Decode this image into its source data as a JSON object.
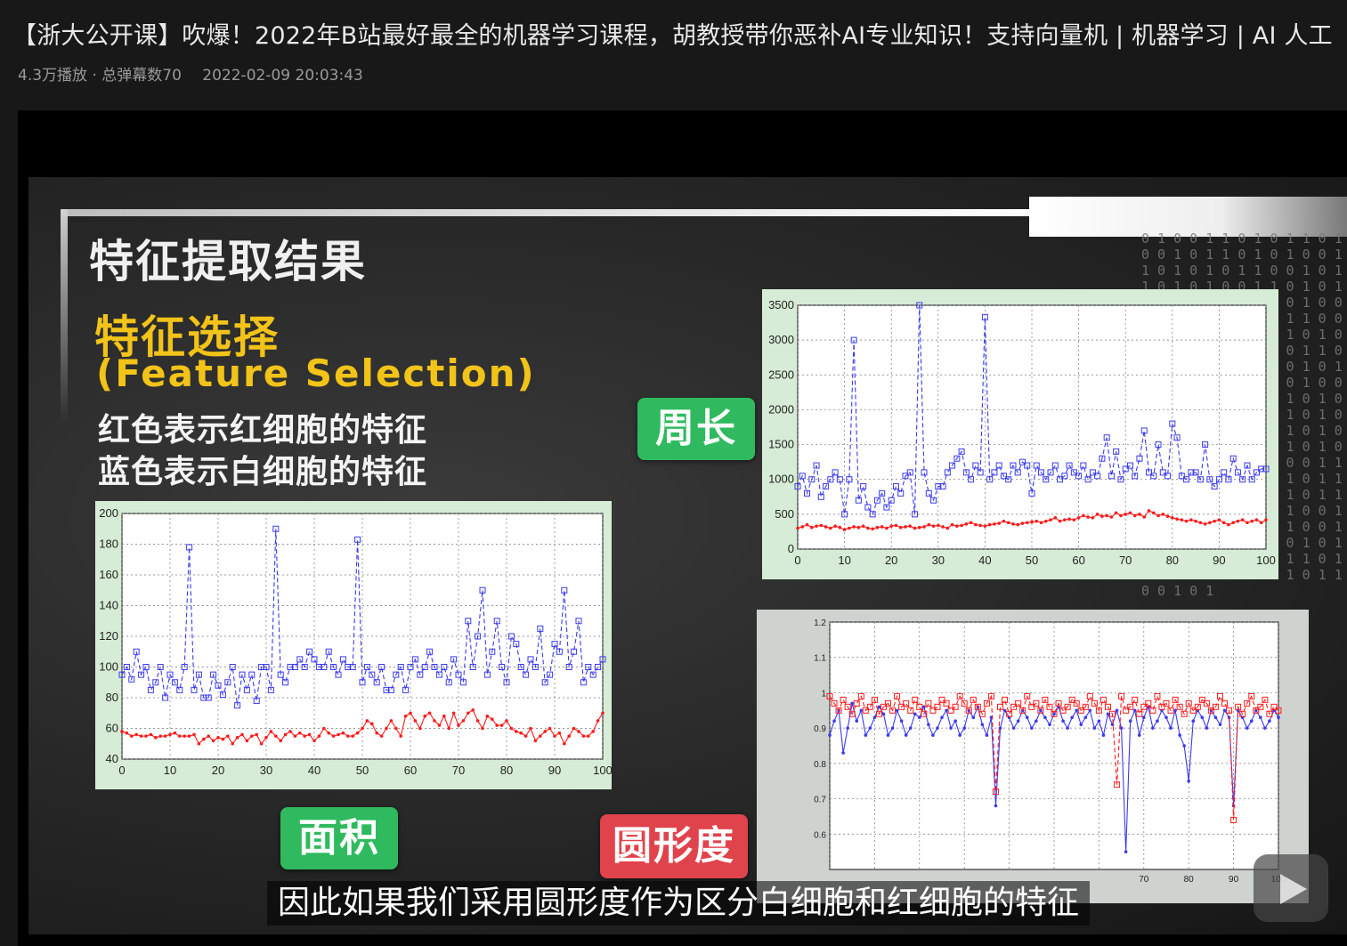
{
  "video": {
    "title": "【浙大公开课】吹爆！2022年B站最好最全的机器学习课程，胡教授带你恶补AI专业知识！支持向量机 | 机器学习 | AI 人工",
    "stats": "4.3万播放 · 总弹幕数70",
    "date": "2022-02-09 20:03:43"
  },
  "slide": {
    "heading": "特征提取结果",
    "feature_cn": "特征选择",
    "feature_en": "(Feature  Selection)",
    "red_note": "红色表示红细胞的特征",
    "blue_note": "蓝色表示白细胞的特征",
    "badge_perimeter": "周长",
    "badge_area": "面积",
    "badge_circularity": "圆形度",
    "matrix_text": "0 1 0 0 1 1 0 1 0 1 1 0 1 0 0 1 0 1 1 0 1 0 1 0 0 1 1 0 1 0 1 0 1 1 0 0 1 0 1 1 0 1 0 1 0 0 1 1 0 1 0 1 1 0 0 1 0 1 0 1 1 0 1 0 0 1 0 1 1 0 1 0 1 0 1 1 0 0 1 0 1 1 0 1 0 0 1 1 0 1 0 1 0 1 1 0 1 0 0 1 0 1 1 0 1 0 1 0 0 1 1 0 1 0 1 0 1 1 0 0 1 0 1 1 0 1 0 1 0 0 1 1 0 1 0 1 1 0 0 1 0 1 0 1 1 0 1 0 0 1 0 1 1 0 1 0 1 0 1 1 0 0 1 0 1 1 0 1 0 0 1 1 0 1 0 1 0 1 1 0 1 0 0 1 0 1 1 0 1 0 1 0 0 1 1 0 1 0 1 0 1 1 0 0 1 0 1 1 0 1 0 1 0 0 1 1 0 1 0 1 1 0 0 1 0 1 0 1 1 0 1 0 0 1 0 1 1 0 1 0 1 0 1 1 0 0 1 0 1 1 0 1 0 0 1 1 0 1 0 1 0 1 1 0 1 0 0 1 0 1 1 0 1 0 1 0 0 1 1 0 1 0 1 0 1 1 0 0 1 0 1"
  },
  "subtitle": "因此如果我们采用圆形度作为区分白细胞和红细胞的特征",
  "colors": {
    "red_series": "#ff1a1a",
    "blue_series": "#3a3af0",
    "badge_green": "#2fba5f",
    "badge_red": "#e0434c"
  },
  "chart_data": [
    {
      "id": "perimeter",
      "type": "line",
      "title": "周长",
      "xlim": [
        0,
        100
      ],
      "ylim": [
        0,
        3500
      ],
      "xticks": [
        0,
        10,
        20,
        30,
        40,
        50,
        60,
        70,
        80,
        90,
        100
      ],
      "yticks": [
        0,
        500,
        1000,
        1500,
        2000,
        2500,
        3000,
        3500
      ],
      "series": [
        {
          "name": "白细胞",
          "color": "#3a3af0",
          "marker": "square",
          "values": [
            900,
            1050,
            800,
            1000,
            1200,
            750,
            900,
            1000,
            1100,
            1000,
            500,
            1000,
            3000,
            700,
            900,
            600,
            500,
            700,
            800,
            600,
            700,
            900,
            800,
            1050,
            1100,
            500,
            3500,
            1100,
            800,
            700,
            900,
            900,
            1100,
            1200,
            1300,
            1400,
            1100,
            1000,
            1200,
            1100,
            3330,
            1000,
            1100,
            1200,
            1050,
            1000,
            1200,
            1100,
            1250,
            1200,
            800,
            1200,
            1100,
            1000,
            1100,
            1200,
            1000,
            1050,
            1200,
            1100,
            1050,
            1200,
            1000,
            1100,
            1050,
            1300,
            1600,
            1050,
            1400,
            1000,
            1150,
            1200,
            1050,
            1300,
            1700,
            1100,
            1050,
            1500,
            1100,
            1050,
            1800,
            1600,
            1050,
            1000,
            1100,
            1100,
            1000,
            1500,
            1000,
            900,
            1000,
            1100,
            1000,
            1300,
            1100,
            1000,
            1200,
            1000,
            1100,
            1150,
            1150
          ],
          "peaks": []
        },
        {
          "name": "红细胞",
          "color": "#ff1a1a",
          "marker": "star",
          "values": [
            300,
            320,
            350,
            310,
            330,
            340,
            320,
            300,
            330,
            310,
            280,
            300,
            320,
            310,
            330,
            300,
            290,
            310,
            320,
            300,
            330,
            340,
            310,
            320,
            330,
            300,
            310,
            320,
            350,
            330,
            340,
            320,
            300,
            350,
            330,
            340,
            360,
            380,
            350,
            340,
            330,
            350,
            360,
            370,
            400,
            380,
            360,
            350,
            370,
            380,
            390,
            400,
            380,
            400,
            420,
            450,
            400,
            420,
            430,
            420,
            450,
            480,
            460,
            450,
            500,
            470,
            480,
            460,
            520,
            480,
            500,
            520,
            480,
            500,
            460,
            550,
            520,
            480,
            500,
            470,
            450,
            430,
            420,
            400,
            420,
            400,
            380,
            360,
            380,
            400,
            420,
            380,
            350,
            380,
            400,
            420,
            380,
            400,
            420,
            380,
            420
          ]
        }
      ]
    },
    {
      "id": "area",
      "type": "line",
      "title": "面积",
      "xlim": [
        0,
        100
      ],
      "ylim": [
        40,
        200
      ],
      "xticks": [
        0,
        10,
        20,
        30,
        40,
        50,
        60,
        70,
        80,
        90,
        100
      ],
      "yticks": [
        40,
        60,
        80,
        100,
        120,
        140,
        160,
        180,
        200
      ],
      "series": [
        {
          "name": "白细胞",
          "color": "#3a3af0",
          "marker": "square",
          "values": [
            95,
            100,
            92,
            110,
            95,
            100,
            85,
            90,
            100,
            80,
            95,
            90,
            85,
            100,
            178,
            85,
            95,
            80,
            80,
            95,
            88,
            82,
            90,
            100,
            75,
            95,
            85,
            95,
            78,
            100,
            100,
            85,
            190,
            95,
            90,
            100,
            100,
            105,
            100,
            110,
            105,
            100,
            100,
            110,
            100,
            95,
            105,
            100,
            100,
            183,
            90,
            100,
            95,
            90,
            100,
            85,
            85,
            95,
            100,
            85,
            100,
            105,
            95,
            100,
            110,
            100,
            95,
            100,
            90,
            105,
            95,
            90,
            130,
            100,
            120,
            150,
            95,
            110,
            130,
            100,
            90,
            120,
            115,
            100,
            95,
            105,
            100,
            125,
            90,
            95,
            115,
            110,
            150,
            100,
            110,
            130,
            90,
            100,
            95,
            100,
            105
          ],
          "peaks": []
        },
        {
          "name": "红细胞",
          "color": "#ff1a1a",
          "marker": "star",
          "values": [
            58,
            57,
            55,
            56,
            55,
            55,
            56,
            54,
            55,
            55,
            56,
            57,
            55,
            55,
            55,
            56,
            50,
            53,
            55,
            52,
            54,
            53,
            55,
            50,
            54,
            56,
            52,
            55,
            56,
            50,
            54,
            58,
            55,
            52,
            56,
            58,
            55,
            57,
            55,
            56,
            52,
            55,
            60,
            57,
            55,
            56,
            57,
            55,
            55,
            57,
            60,
            65,
            63,
            57,
            55,
            60,
            65,
            60,
            55,
            68,
            70,
            65,
            60,
            68,
            70,
            65,
            62,
            68,
            60,
            70,
            62,
            65,
            70,
            72,
            65,
            60,
            68,
            66,
            62,
            62,
            65,
            60,
            58,
            57,
            55,
            60,
            52,
            55,
            58,
            60,
            55,
            57,
            50,
            55,
            60,
            58,
            55,
            55,
            58,
            65,
            70
          ]
        }
      ]
    },
    {
      "id": "circularity",
      "type": "line",
      "title": "圆形度",
      "xlim": [
        0,
        100
      ],
      "ylim": [
        0.5,
        1.2
      ],
      "xticks": [
        70,
        80,
        90,
        100
      ],
      "yticks": [
        0.6,
        0.7,
        0.8,
        0.9,
        1.0,
        1.1,
        1.2
      ],
      "series": [
        {
          "name": "白细胞",
          "color": "#3a3af0",
          "marker": "star",
          "values": [
            0.88,
            0.92,
            0.95,
            0.83,
            0.9,
            0.97,
            0.92,
            0.95,
            0.88,
            0.9,
            0.93,
            0.96,
            0.94,
            0.88,
            0.9,
            0.95,
            0.92,
            0.88,
            0.9,
            0.94,
            0.93,
            0.96,
            0.91,
            0.88,
            0.9,
            0.93,
            0.95,
            0.9,
            0.92,
            0.88,
            0.9,
            0.95,
            0.93,
            0.96,
            0.91,
            0.88,
            0.93,
            0.68,
            0.9,
            0.95,
            0.93,
            0.9,
            0.92,
            0.95,
            0.93,
            0.9,
            0.92,
            0.95,
            0.93,
            0.91,
            0.94,
            0.96,
            0.92,
            0.9,
            0.93,
            0.95,
            0.91,
            0.93,
            0.95,
            0.9,
            0.92,
            0.88,
            0.94,
            0.91,
            0.95,
            0.9,
            0.55,
            0.92,
            0.95,
            0.88,
            0.93,
            0.96,
            0.9,
            0.92,
            0.95,
            0.93,
            0.9,
            0.95,
            0.88,
            0.85,
            0.75,
            0.92,
            0.95,
            0.93,
            0.9,
            0.95,
            0.93,
            0.91,
            0.95,
            0.93,
            0.68,
            0.95,
            0.93,
            0.9,
            0.92,
            0.95,
            0.93,
            0.9,
            0.92,
            0.95,
            0.93
          ]
        },
        {
          "name": "红细胞",
          "color": "#ff1a1a",
          "marker": "square",
          "values": [
            0.99,
            0.97,
            0.95,
            0.98,
            0.96,
            0.94,
            0.97,
            0.99,
            0.95,
            0.96,
            0.98,
            0.94,
            0.96,
            0.97,
            0.95,
            0.99,
            0.96,
            0.97,
            0.95,
            0.98,
            0.96,
            0.94,
            0.97,
            0.95,
            0.96,
            0.98,
            0.97,
            0.95,
            0.96,
            0.99,
            0.97,
            0.95,
            0.98,
            0.96,
            0.94,
            0.97,
            0.99,
            0.72,
            0.96,
            0.98,
            0.94,
            0.96,
            0.97,
            0.95,
            0.99,
            0.96,
            0.97,
            0.95,
            0.98,
            0.96,
            0.94,
            0.97,
            0.95,
            0.96,
            0.98,
            0.97,
            0.95,
            0.96,
            0.99,
            0.97,
            0.95,
            0.98,
            0.96,
            0.94,
            0.74,
            0.99,
            0.95,
            0.96,
            0.98,
            0.94,
            0.96,
            0.97,
            0.95,
            0.99,
            0.96,
            0.97,
            0.95,
            0.98,
            0.96,
            0.94,
            0.97,
            0.95,
            0.96,
            0.98,
            0.97,
            0.95,
            0.96,
            0.99,
            0.97,
            0.95,
            0.64,
            0.96,
            0.94,
            0.97,
            0.99,
            0.95,
            0.96,
            0.98,
            0.94,
            0.96,
            0.95
          ]
        }
      ]
    }
  ]
}
